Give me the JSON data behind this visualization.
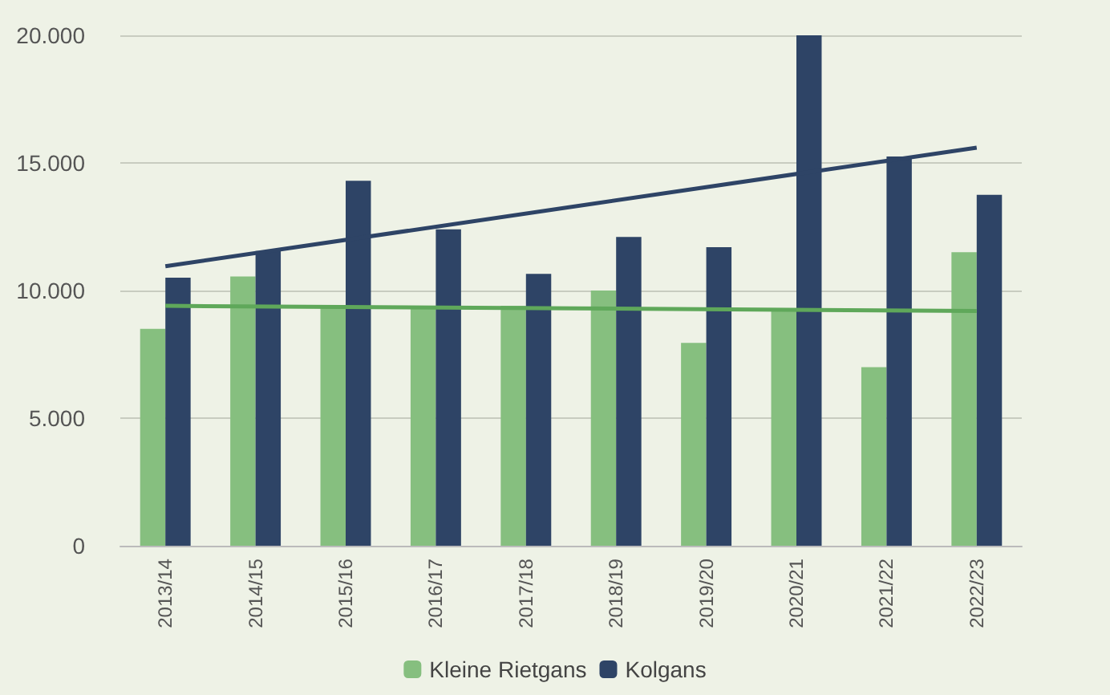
{
  "chart_data": {
    "type": "bar",
    "categories": [
      "2013/14",
      "2014/15",
      "2015/16",
      "2016/17",
      "2017/18",
      "2018/19",
      "2019/20",
      "2020/21",
      "2021/22",
      "2022/23"
    ],
    "series": [
      {
        "name": "Kleine Rietgans",
        "color": "#86bf7f",
        "values": [
          8500,
          10550,
          9350,
          9300,
          9400,
          10000,
          7950,
          9300,
          7000,
          11500
        ]
      },
      {
        "name": "Kolgans",
        "color": "#2e4466",
        "values": [
          10500,
          11550,
          14300,
          12400,
          10650,
          12100,
          11700,
          20000,
          15250,
          13750
        ]
      },
      {
        "type": "line",
        "color": "#5fa85a",
        "x": [
          "2013/14",
          "2022/23"
        ],
        "values": [
          9400,
          9200
        ]
      },
      {
        "type": "line",
        "color": "#2e4466",
        "x": [
          "2013/14",
          "2022/23"
        ],
        "values": [
          10950,
          15600
        ]
      }
    ],
    "ylim": [
      0,
      20000
    ],
    "yticks": [
      {
        "value": 0,
        "label": "0"
      },
      {
        "value": 5000,
        "label": "5.000"
      },
      {
        "value": 10000,
        "label": "10.000"
      },
      {
        "value": 15000,
        "label": "15.000"
      },
      {
        "value": 20000,
        "label": "20.000"
      }
    ],
    "grid": "y",
    "legend": "bottom",
    "marker": "none"
  }
}
